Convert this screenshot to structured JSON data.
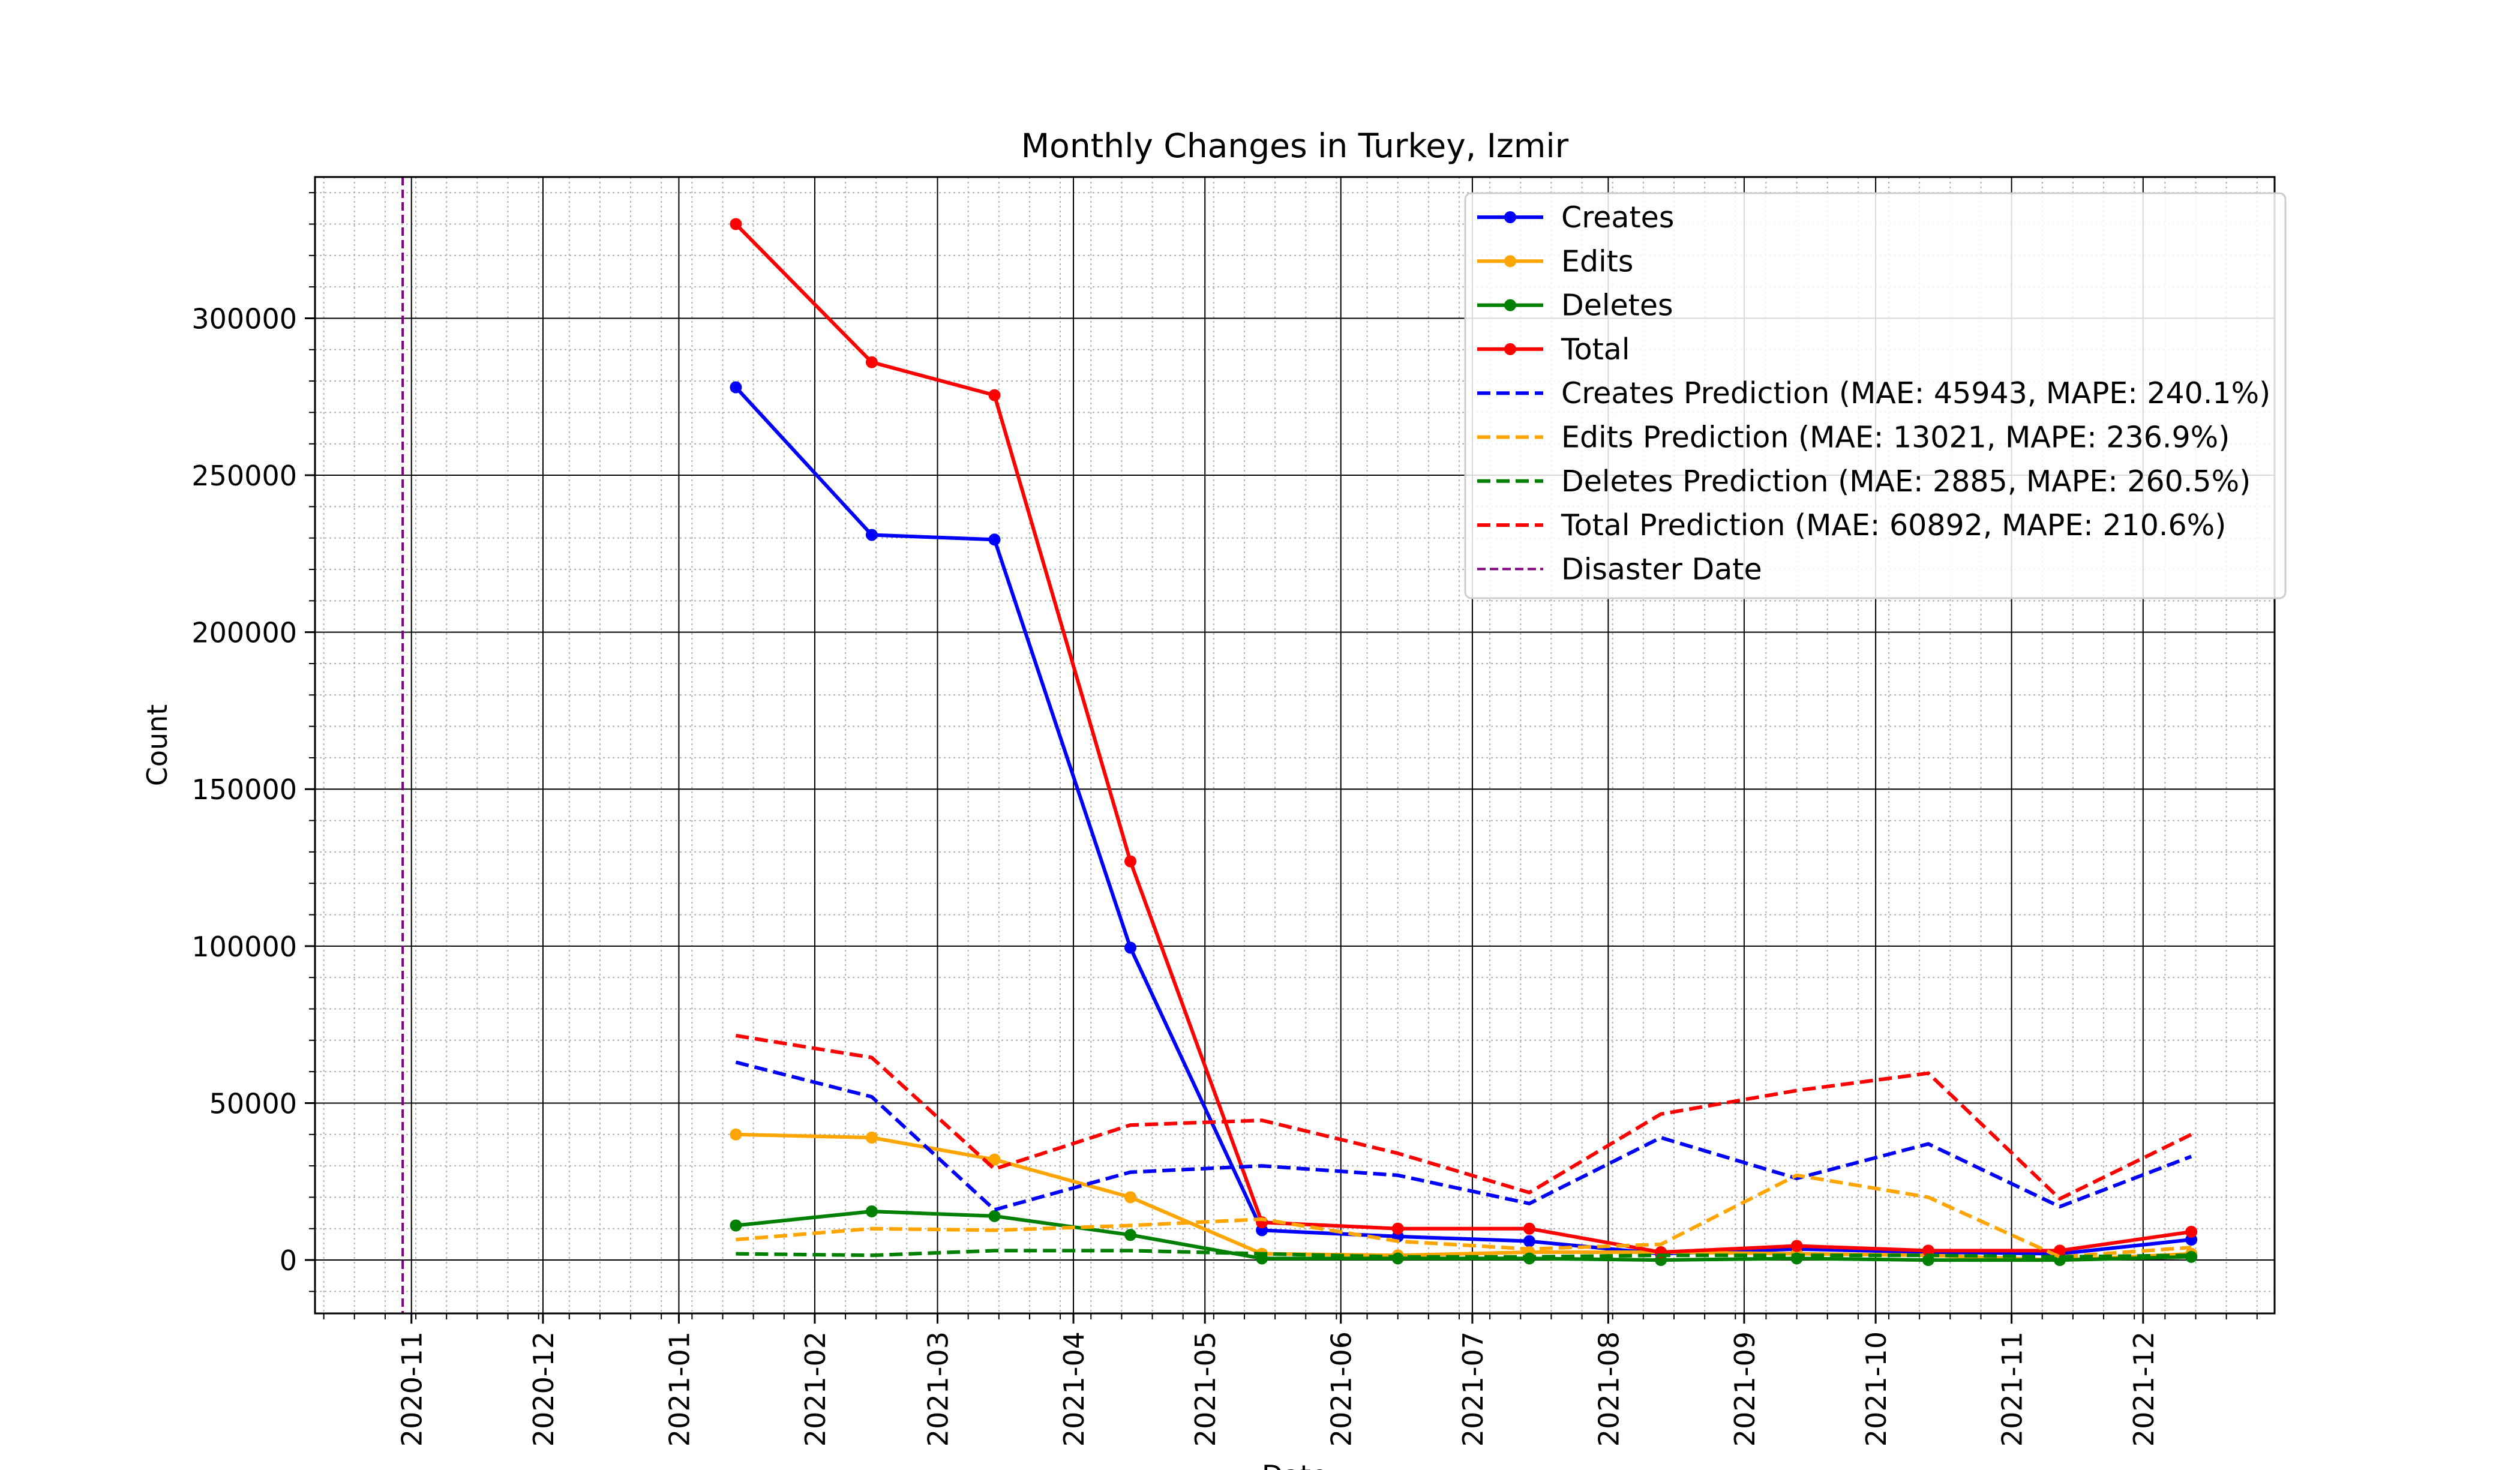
{
  "chart_data": {
    "type": "line",
    "title": "Monthly Changes in Turkey, Izmir",
    "xlabel": "Date",
    "ylabel": "Count",
    "xlim": [
      "2020-10-10",
      "2021-12-31"
    ],
    "ylim": [
      -17000,
      345000
    ],
    "y_ticks": [
      0,
      50000,
      100000,
      150000,
      200000,
      250000,
      300000
    ],
    "x_ticks": [
      "2020-11",
      "2020-12",
      "2021-01",
      "2021-02",
      "2021-03",
      "2021-04",
      "2021-05",
      "2021-06",
      "2021-07",
      "2021-08",
      "2021-09",
      "2021-10",
      "2021-11",
      "2021-12"
    ],
    "grid": true,
    "minor_grid": true,
    "legend_position": "top-right",
    "dates": [
      "2021-01-14",
      "2021-02-14",
      "2021-03-14",
      "2021-04-14",
      "2021-05-14",
      "2021-06-14",
      "2021-07-14",
      "2021-08-13",
      "2021-09-13",
      "2021-10-13",
      "2021-11-12",
      "2021-12-12"
    ],
    "series": [
      {
        "name": "Creates",
        "color": "#0000ff",
        "style": "solid",
        "marker": true,
        "values": [
          278000,
          231000,
          229500,
          99500,
          9500,
          7500,
          6000,
          2000,
          3500,
          2500,
          2000,
          6500
        ]
      },
      {
        "name": "Edits",
        "color": "#ffa500",
        "style": "solid",
        "marker": true,
        "values": [
          40000,
          39000,
          32000,
          20000,
          2000,
          1500,
          2500,
          2500,
          2000,
          1500,
          0,
          2000
        ]
      },
      {
        "name": "Deletes",
        "color": "#008000",
        "style": "solid",
        "marker": true,
        "values": [
          11000,
          15500,
          14000,
          8000,
          500,
          500,
          500,
          0,
          500,
          0,
          0,
          1000
        ]
      },
      {
        "name": "Total",
        "color": "#ff0000",
        "style": "solid",
        "marker": true,
        "values": [
          330000,
          286000,
          275500,
          127000,
          12000,
          10000,
          10000,
          2500,
          4500,
          3000,
          3000,
          9000
        ]
      },
      {
        "name": "Creates Prediction (MAE: 45943, MAPE: 240.1%)",
        "color": "#0000ff",
        "style": "dashed",
        "marker": false,
        "values": [
          63000,
          52000,
          16000,
          28000,
          30000,
          27000,
          18000,
          39000,
          26000,
          37000,
          17000,
          33000
        ]
      },
      {
        "name": "Edits Prediction (MAE: 13021, MAPE: 236.9%)",
        "color": "#ffa500",
        "style": "dashed",
        "marker": false,
        "values": [
          6500,
          10000,
          9500,
          11000,
          13000,
          6000,
          3500,
          5000,
          27000,
          20000,
          1000,
          4000
        ]
      },
      {
        "name": "Deletes Prediction (MAE: 2885, MAPE: 260.5%)",
        "color": "#008000",
        "style": "dashed",
        "marker": false,
        "values": [
          2000,
          1500,
          3000,
          3000,
          2000,
          1000,
          1000,
          1500,
          1500,
          1500,
          1000,
          1500
        ]
      },
      {
        "name": "Total Prediction (MAE: 60892, MAPE: 210.6%)",
        "color": "#ff0000",
        "style": "dashed",
        "marker": false,
        "values": [
          71500,
          64500,
          29000,
          43000,
          44500,
          34000,
          21500,
          46500,
          54000,
          59500,
          19500,
          40000
        ]
      }
    ],
    "vlines": [
      {
        "name": "Disaster Date",
        "date": "2020-10-30",
        "color": "#800080",
        "style": "dashed"
      }
    ]
  }
}
